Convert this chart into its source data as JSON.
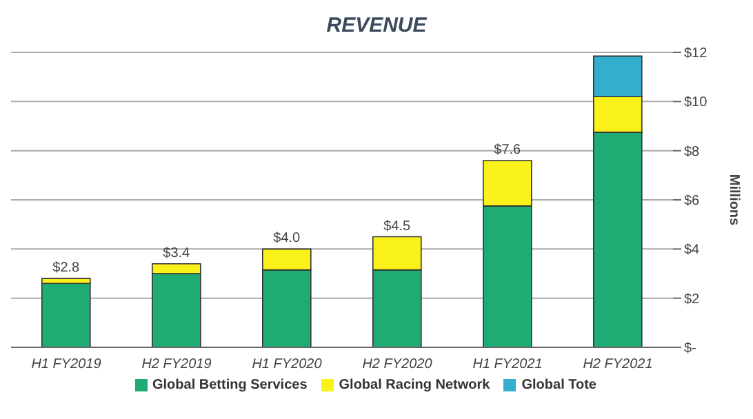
{
  "chart_data": {
    "type": "bar",
    "title": "REVENUE",
    "ylabel": "Millions",
    "categories": [
      "H1 FY2019",
      "H2 FY2019",
      "H1 FY2020",
      "H2 FY2020",
      "H1 FY2021",
      "H2 FY2021"
    ],
    "series": [
      {
        "name": "Global Betting Services",
        "color": "#1fab74",
        "values": [
          2.6,
          3.0,
          3.15,
          3.15,
          5.75,
          8.75
        ]
      },
      {
        "name": "Global Racing Network",
        "color": "#faf01a",
        "values": [
          0.2,
          0.4,
          0.85,
          1.35,
          1.85,
          1.45
        ]
      },
      {
        "name": "Global Tote",
        "color": "#33aecd",
        "values": [
          0,
          0,
          0,
          0,
          0,
          1.65
        ]
      }
    ],
    "stacked": true,
    "totals": [
      "$2.8",
      "$3.4",
      "$4.0",
      "$4.5",
      "$7.6",
      null
    ],
    "ylim": [
      0,
      12
    ],
    "yticks": [
      {
        "value": 0,
        "label": "$-"
      },
      {
        "value": 2,
        "label": "$2"
      },
      {
        "value": 4,
        "label": "$4"
      },
      {
        "value": 6,
        "label": "$6"
      },
      {
        "value": 8,
        "label": "$8"
      },
      {
        "value": 10,
        "label": "$10"
      },
      {
        "value": 12,
        "label": "$12"
      }
    ],
    "grid": "y",
    "legend": "bottom"
  }
}
